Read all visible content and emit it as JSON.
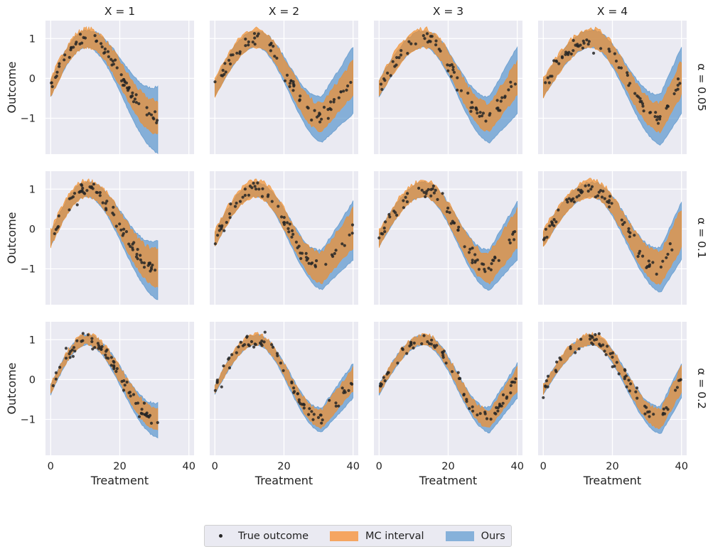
{
  "chart_data": {
    "type": "scatter",
    "layout": "facet-grid",
    "xlabel": "Treatment",
    "ylabel": "Outcome",
    "col_titles": [
      "X = 1",
      "X = 2",
      "X = 3",
      "X = 4"
    ],
    "row_titles": [
      "α = 0.05",
      "α = 0.1",
      "α = 0.2"
    ],
    "xlim": [
      -1.5,
      41.5
    ],
    "ylim": [
      -1.9,
      1.45
    ],
    "xticks": [
      0,
      20,
      40
    ],
    "xtick_labels": [
      "0",
      "20",
      "40"
    ],
    "yticks": [
      1,
      0,
      -1
    ],
    "ytick_labels": [
      "1",
      "0",
      "−1"
    ],
    "treatment_max": [
      31,
      40,
      40,
      40
    ],
    "peak_treatment": [
      10.5,
      12,
      13,
      14
    ],
    "trough_treatment": [
      31,
      31,
      32,
      34
    ],
    "alphas": [
      0.05,
      0.1,
      0.2
    ],
    "series": [
      {
        "name": "True outcome",
        "kind": "points",
        "color": "#262626",
        "n_points": 70
      },
      {
        "name": "MC interval",
        "kind": "band",
        "color": "#f28e2b",
        "half_width_at_peak": [
          0.25,
          0.22,
          0.13
        ],
        "half_width_at_end": [
          0.45,
          0.52,
          0.32
        ]
      },
      {
        "name": "Ours",
        "kind": "band",
        "color": "#5b9bd1",
        "half_width_at_peak": [
          0.2,
          0.17,
          0.12
        ],
        "half_width_at_end": [
          0.8,
          0.7,
          0.42
        ]
      }
    ],
    "grid": true,
    "background": "#eaeaf2",
    "legend_position": "bottom-center"
  },
  "legend": {
    "items": [
      "True outcome",
      "MC interval",
      "Ours"
    ]
  },
  "colors": {
    "panel_bg": "#eaeaf2",
    "grid": "#ffffff",
    "points": "#262626",
    "mc": "#f28e2b",
    "ours": "#4f8fca"
  }
}
